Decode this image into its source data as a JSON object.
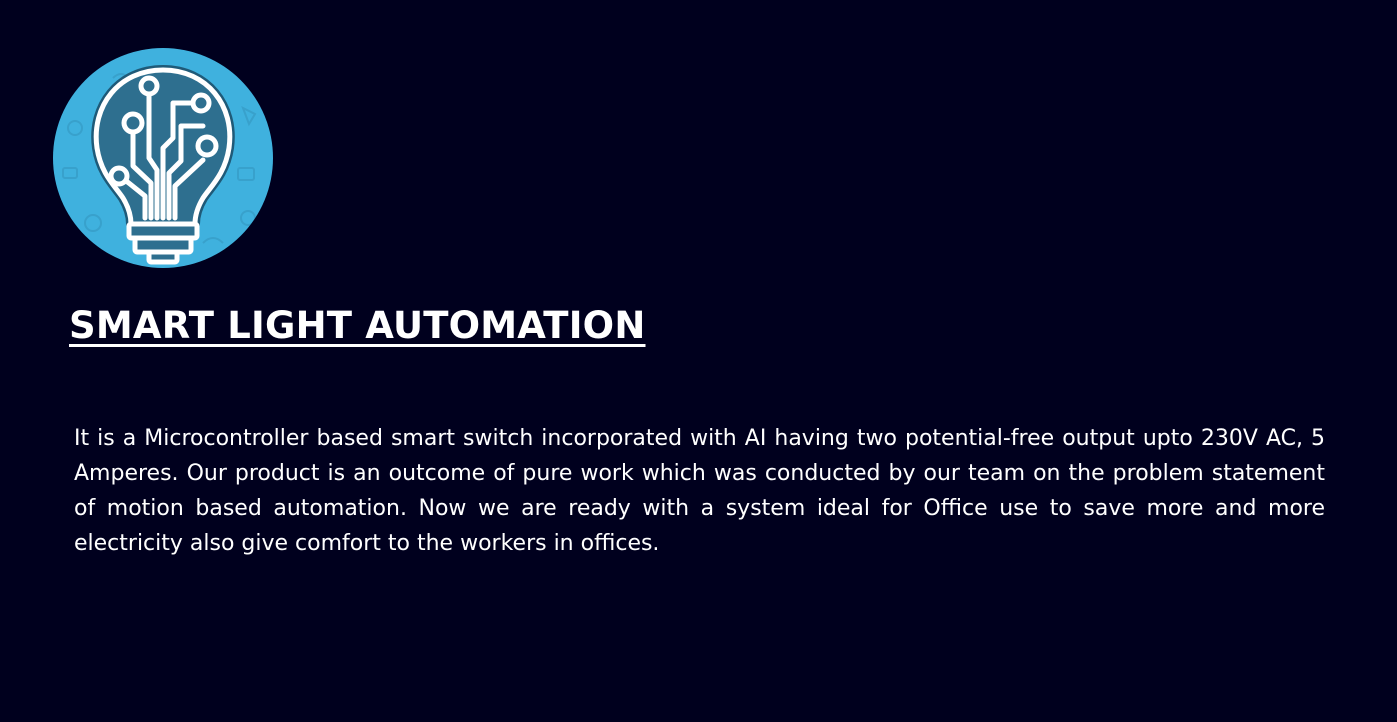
{
  "logo": {
    "icon": "circuit-lightbulb-icon",
    "background_color": "#3fb1de",
    "icon_color": "#ffffff",
    "outline_color": "#1f5a78"
  },
  "title": "SMART LIGHT AUTOMATION",
  "description": "It is a Microcontroller based smart switch incorporated with AI having two potential-free output upto 230V AC, 5 Amperes. Our product is an outcome of pure work which was conducted by our team on the problem statement of motion based automation. Now we are ready with a system ideal for Office use to save more and more electricity also give comfort to the workers in offices.",
  "colors": {
    "page_background": "#00001e",
    "text": "#ffffff"
  }
}
